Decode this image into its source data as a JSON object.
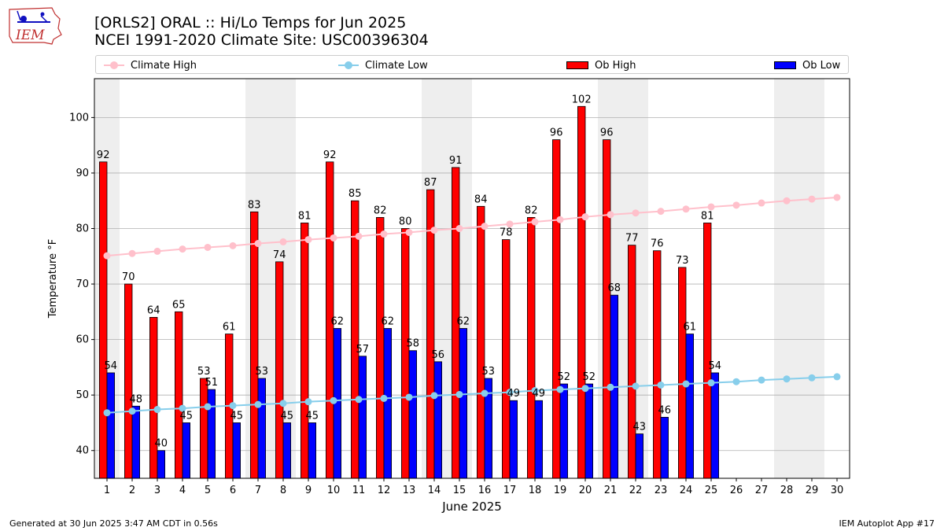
{
  "header": {
    "logo_text": "IEM",
    "title_line1": "[ORLS2] ORAL :: Hi/Lo Temps for Jun 2025",
    "title_line2": "NCEI 1991-2020 Climate Site: USC00396304"
  },
  "legend": {
    "climate_high": "Climate High",
    "climate_low": "Climate Low",
    "ob_high": "Ob High",
    "ob_low": "Ob Low"
  },
  "footer": {
    "generated": "Generated at 30 Jun 2025 3:47 AM CDT in 0.56s",
    "app": "IEM Autoplot App #17"
  },
  "colors": {
    "ob_high": "#ff0000",
    "ob_low": "#0000ff",
    "climate_high": "#ffc0cb",
    "climate_low": "#87ceeb",
    "weekend_band": "#eeeeee",
    "grid": "#b0b0b0"
  },
  "chart_data": {
    "type": "bar",
    "xlabel": "June 2025",
    "ylabel": "Temperature °F",
    "xlim": [
      0.5,
      30.5
    ],
    "ylim": [
      35,
      107
    ],
    "yticks": [
      40,
      50,
      60,
      70,
      80,
      90,
      100
    ],
    "days": [
      1,
      2,
      3,
      4,
      5,
      6,
      7,
      8,
      9,
      10,
      11,
      12,
      13,
      14,
      15,
      16,
      17,
      18,
      19,
      20,
      21,
      22,
      23,
      24,
      25,
      26,
      27,
      28,
      29,
      30
    ],
    "weekend_days": [
      1,
      7,
      8,
      14,
      15,
      21,
      22,
      28,
      29
    ],
    "grid": true,
    "legend_position": "top",
    "series": [
      {
        "name": "Ob High",
        "kind": "bar",
        "values": [
          92,
          70,
          64,
          65,
          53,
          61,
          83,
          74,
          81,
          92,
          85,
          82,
          80,
          87,
          91,
          84,
          78,
          82,
          96,
          102,
          96,
          77,
          76,
          73,
          81
        ]
      },
      {
        "name": "Ob Low",
        "kind": "bar",
        "values": [
          54,
          48,
          40,
          45,
          51,
          45,
          53,
          45,
          45,
          62,
          57,
          62,
          58,
          56,
          62,
          53,
          49,
          49,
          52,
          52,
          68,
          43,
          46,
          61,
          54
        ]
      },
      {
        "name": "Climate High",
        "kind": "line",
        "values": [
          75.1,
          75.5,
          75.9,
          76.3,
          76.6,
          76.9,
          77.3,
          77.6,
          78.0,
          78.3,
          78.6,
          79.0,
          79.3,
          79.7,
          80.0,
          80.4,
          80.8,
          81.2,
          81.6,
          82.1,
          82.5,
          82.8,
          83.1,
          83.5,
          83.9,
          84.2,
          84.6,
          85.0,
          85.3,
          85.6
        ]
      },
      {
        "name": "Climate Low",
        "kind": "line",
        "values": [
          46.8,
          47.1,
          47.4,
          47.6,
          47.9,
          48.1,
          48.3,
          48.5,
          48.8,
          49.0,
          49.2,
          49.4,
          49.6,
          49.9,
          50.1,
          50.3,
          50.5,
          50.8,
          51.0,
          51.2,
          51.4,
          51.6,
          51.8,
          52.0,
          52.2,
          52.4,
          52.7,
          52.9,
          53.1,
          53.3
        ]
      }
    ]
  }
}
